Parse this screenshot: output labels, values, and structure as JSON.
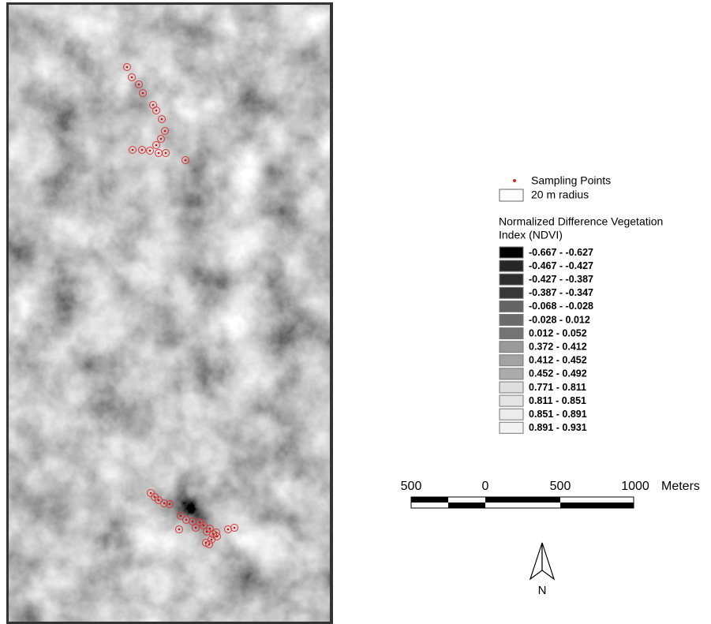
{
  "legend": {
    "sampling_points": "Sampling Points",
    "radius": "20 m radius",
    "title_line1": "Normalized Difference Vegetation",
    "title_line2": "Index (NDVI)",
    "classes": [
      {
        "label": "-0.667 - -0.627",
        "color": "#000000"
      },
      {
        "label": "-0.467 - -0.427",
        "color": "#262626"
      },
      {
        "label": "-0.427 - -0.387",
        "color": "#2e2e2e"
      },
      {
        "label": "-0.387 - -0.347",
        "color": "#383838"
      },
      {
        "label": "-0.068 - -0.028",
        "color": "#646464"
      },
      {
        "label": "-0.028 - 0.012",
        "color": "#6c6c6c"
      },
      {
        "label": "0.012 - 0.052",
        "color": "#747474"
      },
      {
        "label": "0.372 - 0.412",
        "color": "#9a9a9a"
      },
      {
        "label": "0.412 - 0.452",
        "color": "#a3a3a3"
      },
      {
        "label": "0.452 - 0.492",
        "color": "#acacac"
      },
      {
        "label": "0.771 - 0.811",
        "color": "#dedede"
      },
      {
        "label": "0.811 - 0.851",
        "color": "#e5e5e5"
      },
      {
        "label": "0.851 - 0.891",
        "color": "#ececec"
      },
      {
        "label": "0.891 - 0.931",
        "color": "#f3f3f3"
      }
    ]
  },
  "scale_bar": {
    "labels": [
      "500",
      "0",
      "500",
      "1000"
    ],
    "unit": "Meters"
  },
  "north_arrow": "N"
}
